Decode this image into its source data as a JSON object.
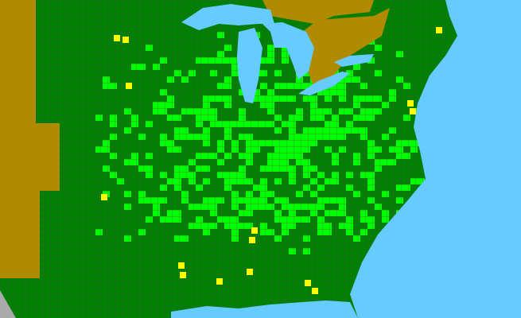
{
  "map": {
    "type": "county distribution map",
    "colors": {
      "water": "#66CCFF",
      "outside_range": "#B08A00",
      "state_present": "#008000",
      "county_present": "#00FF00",
      "county_highlight": "#FFFF00",
      "boundary": "#555555",
      "no_data": "#AAAAAA"
    }
  }
}
